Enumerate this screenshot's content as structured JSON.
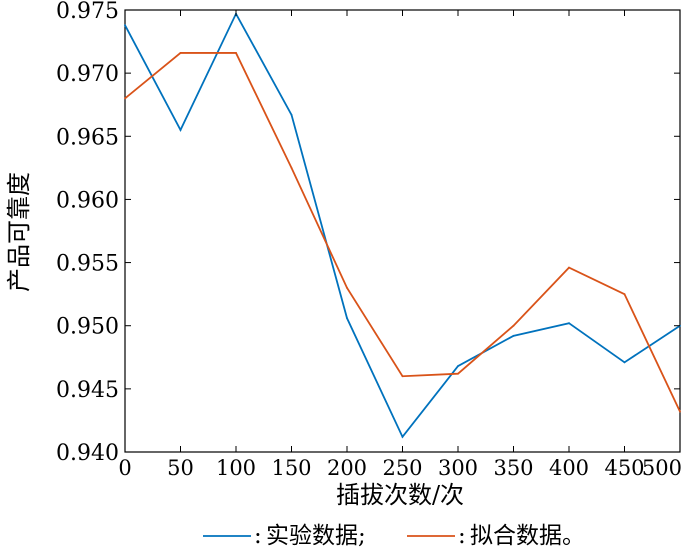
{
  "chart_data": {
    "type": "line",
    "xlabel": "插拔次数/次",
    "ylabel": "产品可靠度",
    "xlim": [
      0,
      500
    ],
    "ylim": [
      0.94,
      0.975
    ],
    "x_ticks": [
      "0",
      "50",
      "100",
      "150",
      "200",
      "250",
      "300",
      "350",
      "400",
      "450",
      "500"
    ],
    "y_ticks": [
      "0.940",
      "0.945",
      "0.950",
      "0.955",
      "0.960",
      "0.965",
      "0.970",
      "0.975"
    ],
    "x": [
      0,
      50,
      100,
      150,
      200,
      250,
      300,
      350,
      400,
      450,
      500
    ],
    "series": [
      {
        "name": "实验数据;",
        "color": "#0072BD",
        "values": [
          0.9738,
          0.9655,
          0.9747,
          0.9667,
          0.9506,
          0.9412,
          0.9468,
          0.9492,
          0.9502,
          0.9471,
          0.95
        ]
      },
      {
        "name": "拟合数据。",
        "color": "#D95319",
        "values": [
          0.968,
          0.9716,
          0.9716,
          0.9625,
          0.953,
          0.946,
          0.9462,
          0.95,
          0.9546,
          0.9525,
          0.9432
        ]
      }
    ],
    "legend": {
      "placement": "bottom",
      "separator": ":"
    },
    "grid": false
  }
}
